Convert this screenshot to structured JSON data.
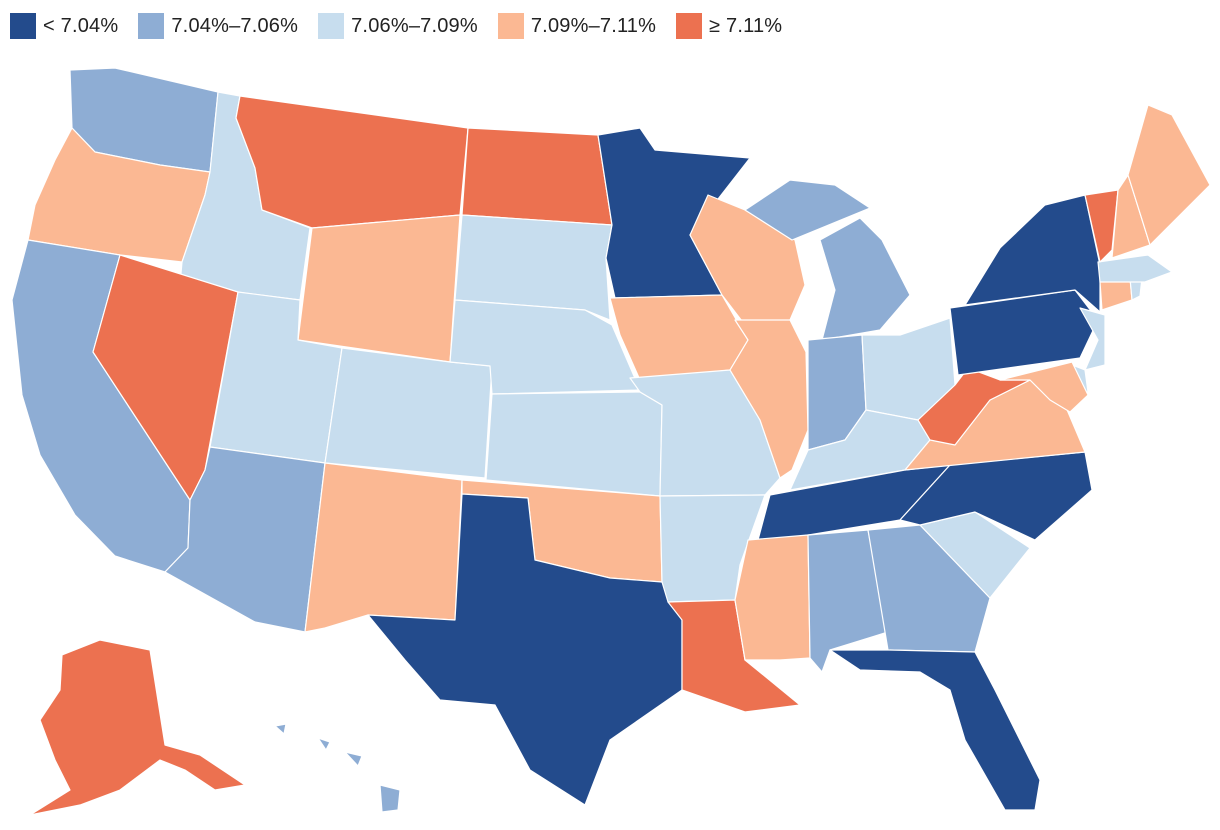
{
  "legend": {
    "bins": [
      {
        "label": "< 7.04%",
        "color": "#234b8c"
      },
      {
        "label": "7.04%–7.06%",
        "color": "#8eadd4"
      },
      {
        "label": "7.06%–7.09%",
        "color": "#c7ddee"
      },
      {
        "label": "7.09%–7.11%",
        "color": "#fbb893"
      },
      {
        "label": "≥ 7.11%",
        "color": "#ec7150"
      }
    ]
  },
  "states": [
    {
      "code": "WA",
      "bin": 1
    },
    {
      "code": "OR",
      "bin": 3
    },
    {
      "code": "CA",
      "bin": 1
    },
    {
      "code": "ID",
      "bin": 2
    },
    {
      "code": "NV",
      "bin": 4
    },
    {
      "code": "MT",
      "bin": 4
    },
    {
      "code": "WY",
      "bin": 3
    },
    {
      "code": "UT",
      "bin": 2
    },
    {
      "code": "AZ",
      "bin": 1
    },
    {
      "code": "CO",
      "bin": 2
    },
    {
      "code": "NM",
      "bin": 3
    },
    {
      "code": "ND",
      "bin": 4
    },
    {
      "code": "SD",
      "bin": 2
    },
    {
      "code": "NE",
      "bin": 2
    },
    {
      "code": "KS",
      "bin": 2
    },
    {
      "code": "OK",
      "bin": 3
    },
    {
      "code": "TX",
      "bin": 0
    },
    {
      "code": "MN",
      "bin": 0
    },
    {
      "code": "IA",
      "bin": 3
    },
    {
      "code": "MO",
      "bin": 2
    },
    {
      "code": "AR",
      "bin": 2
    },
    {
      "code": "LA",
      "bin": 4
    },
    {
      "code": "WI",
      "bin": 3
    },
    {
      "code": "IL",
      "bin": 3
    },
    {
      "code": "MI",
      "bin": 1
    },
    {
      "code": "IN",
      "bin": 1
    },
    {
      "code": "OH",
      "bin": 2
    },
    {
      "code": "KY",
      "bin": 2
    },
    {
      "code": "TN",
      "bin": 0
    },
    {
      "code": "MS",
      "bin": 3
    },
    {
      "code": "AL",
      "bin": 1
    },
    {
      "code": "GA",
      "bin": 1
    },
    {
      "code": "FL",
      "bin": 0
    },
    {
      "code": "SC",
      "bin": 2
    },
    {
      "code": "NC",
      "bin": 0
    },
    {
      "code": "VA",
      "bin": 3
    },
    {
      "code": "WV",
      "bin": 4
    },
    {
      "code": "PA",
      "bin": 0
    },
    {
      "code": "NY",
      "bin": 0
    },
    {
      "code": "NJ",
      "bin": 2
    },
    {
      "code": "DE",
      "bin": 2
    },
    {
      "code": "MD",
      "bin": 3
    },
    {
      "code": "CT",
      "bin": 3
    },
    {
      "code": "RI",
      "bin": 2
    },
    {
      "code": "MA",
      "bin": 2
    },
    {
      "code": "VT",
      "bin": 4
    },
    {
      "code": "NH",
      "bin": 3
    },
    {
      "code": "ME",
      "bin": 3
    },
    {
      "code": "AK",
      "bin": 4
    },
    {
      "code": "HI",
      "bin": 1
    }
  ]
}
